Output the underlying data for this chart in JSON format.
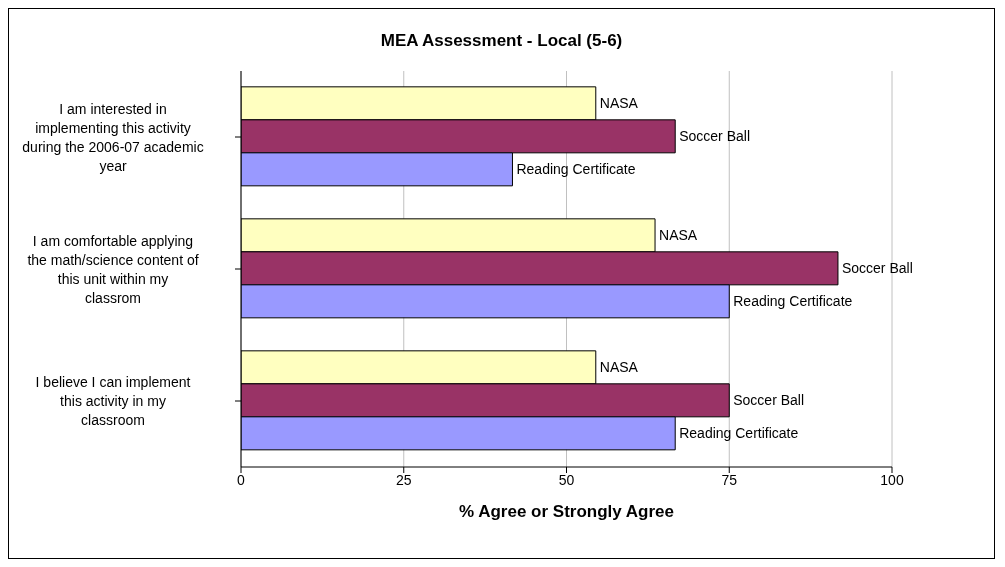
{
  "chart_data": {
    "type": "bar",
    "orientation": "horizontal",
    "title": "MEA Assessment - Local (5-6)",
    "xlabel": "% Agree or Strongly Agree",
    "categories": [
      "I am interested in implementing this activity during the 2006-07 academic year",
      "I am comfortable applying the math/science content of this unit within my classrom",
      "I believe I can implement this activity in my classroom"
    ],
    "series": [
      {
        "name": "NASA",
        "color": "#ffffc0",
        "values": [
          54.5,
          63.6,
          54.5
        ]
      },
      {
        "name": "Soccer Ball",
        "color": "#993366",
        "values": [
          66.7,
          91.7,
          75
        ]
      },
      {
        "name": "Reading Certificate",
        "color": "#9999ff",
        "values": [
          41.7,
          75,
          66.7
        ]
      }
    ],
    "xlim": [
      0,
      100
    ],
    "xticks": [
      0,
      25,
      50,
      75,
      100
    ],
    "grid": "x",
    "legend": false
  }
}
